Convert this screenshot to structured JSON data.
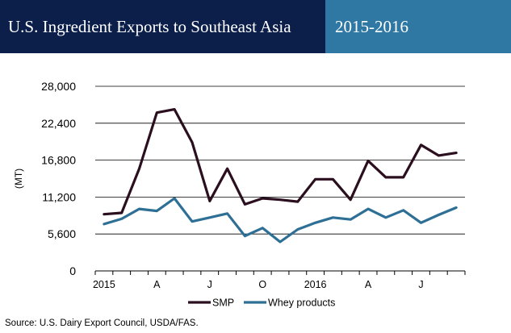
{
  "header": {
    "title": "U.S. Ingredient Exports to Southeast Asia",
    "period": "2015-2016"
  },
  "source": "Source: U.S. Dairy Export Council, USDA/FAS.",
  "colors": {
    "title_bg": "#0b1f4a",
    "period_bg": "#2f78a3",
    "smp": "#2b0f1f",
    "whey": "#2e6f95"
  },
  "chart_data": {
    "type": "line",
    "ylabel": "(MT)",
    "ylim": [
      0,
      28000
    ],
    "yticks": [
      0,
      5600,
      11200,
      16800,
      22400,
      28000
    ],
    "ytick_labels": [
      "0",
      "5,600",
      "11,200",
      "16,800",
      "22,400",
      "28,000"
    ],
    "x_ticks": [
      {
        "index": 0,
        "label": "2015"
      },
      {
        "index": 3,
        "label": "A"
      },
      {
        "index": 6,
        "label": "J"
      },
      {
        "index": 9,
        "label": "O"
      },
      {
        "index": 12,
        "label": "2016"
      },
      {
        "index": 15,
        "label": "A"
      },
      {
        "index": 18,
        "label": "J"
      }
    ],
    "x": [
      "2015-01",
      "2015-02",
      "2015-03",
      "2015-04",
      "2015-05",
      "2015-06",
      "2015-07",
      "2015-08",
      "2015-09",
      "2015-10",
      "2015-11",
      "2015-12",
      "2016-01",
      "2016-02",
      "2016-03",
      "2016-04",
      "2016-05",
      "2016-06",
      "2016-07",
      "2016-08",
      "2016-09"
    ],
    "series": [
      {
        "name": "SMP",
        "values": [
          8600,
          8800,
          15500,
          24000,
          24500,
          19500,
          10600,
          15500,
          10100,
          11000,
          10800,
          10500,
          13900,
          13900,
          10800,
          16700,
          14200,
          14200,
          19100,
          17500,
          17900
        ]
      },
      {
        "name": "Whey products",
        "values": [
          7100,
          7900,
          9400,
          9100,
          11000,
          7500,
          8100,
          8700,
          5300,
          6500,
          4400,
          6300,
          7300,
          8100,
          7800,
          9400,
          8100,
          9200,
          7300,
          8500,
          9600
        ]
      }
    ],
    "grid": true,
    "legend_position": "bottom-left"
  }
}
